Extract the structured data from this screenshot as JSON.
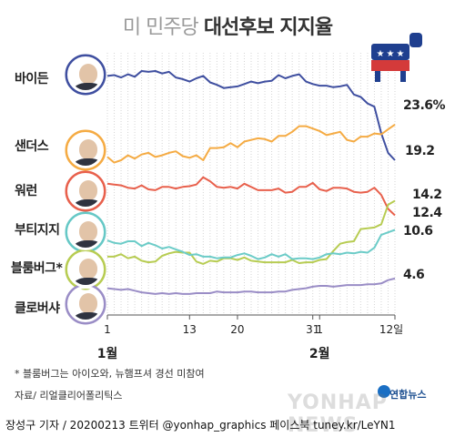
{
  "title": {
    "light": "미 민주당",
    "bold": "대선후보 지지율"
  },
  "candidates": [
    {
      "name": "바이든",
      "color": "#3f4fa0",
      "final_label": "19.2",
      "avatar_color": "#3f4fa0"
    },
    {
      "name": "샌더스",
      "color": "#f5ab43",
      "final_label": "23.6%",
      "avatar_color": "#f5ab43"
    },
    {
      "name": "워런",
      "color": "#e8604c",
      "final_label": "12.4",
      "avatar_color": "#e8604c"
    },
    {
      "name": "부티지지",
      "color": "#b7cc52",
      "final_label": "14.2",
      "avatar_color": "#66c8c6"
    },
    {
      "name": "블룸버그*",
      "color": "#6cccc8",
      "final_label": "10.6",
      "avatar_color": "#b7cc52"
    },
    {
      "name": "클로버샤",
      "color": "#9a8dc6",
      "final_label": "4.6",
      "avatar_color": "#9a8dc6"
    }
  ],
  "x_ticks": [
    "1",
    "13",
    "20",
    "31",
    "1",
    "12일"
  ],
  "months": [
    "1월",
    "2월"
  ],
  "footnote": "* 블룸버그는 아이오와, 뉴햄프셔 경선 미참여",
  "source": "자료/ 리얼클리어폴리틱스",
  "footer": "장성구 기자 / 20200213  트위터 @yonhap_graphics  페이스북 tuney.kr/LeYN1",
  "logo": "연합뉴스",
  "watermark": "YONHAP NEWS",
  "chart_data": {
    "type": "line",
    "title": "미 민주당 대선후보 지지율",
    "x_label": "",
    "y_label": "",
    "grid": true,
    "x": [
      1,
      2,
      3,
      4,
      5,
      6,
      7,
      8,
      9,
      10,
      11,
      12,
      13,
      14,
      15,
      16,
      17,
      18,
      19,
      20,
      21,
      22,
      23,
      24,
      25,
      26,
      27,
      28,
      29,
      30,
      31,
      32,
      33,
      34,
      35,
      36,
      37,
      38,
      39,
      40,
      41,
      42,
      43
    ],
    "series": [
      {
        "name": "바이든",
        "values": [
          29.6,
          29.7,
          29.4,
          29.8,
          29.5,
          30.2,
          30.1,
          30.2,
          29.9,
          30.1,
          29.4,
          29.2,
          28.9,
          29.3,
          29.6,
          28.8,
          28.5,
          28.1,
          28.2,
          28.3,
          28.6,
          28.9,
          28.7,
          28.9,
          29.0,
          29.7,
          29.3,
          29.6,
          29.8,
          28.9,
          28.6,
          28.4,
          28.4,
          28.2,
          28.3,
          28.5,
          27.3,
          27.0,
          26.2,
          25.8,
          22.5,
          20.1,
          19.2
        ]
      },
      {
        "name": "샌더스",
        "values": [
          19.6,
          18.9,
          19.2,
          19.8,
          19.4,
          19.9,
          20.1,
          19.6,
          19.8,
          20.1,
          20.3,
          19.7,
          19.5,
          19.8,
          19.2,
          20.7,
          20.7,
          20.8,
          21.3,
          20.8,
          21.5,
          21.7,
          21.9,
          21.8,
          21.5,
          22.2,
          22.2,
          22.7,
          23.4,
          23.4,
          23.1,
          22.8,
          22.3,
          22.5,
          22.7,
          21.7,
          21.5,
          22.1,
          22.1,
          22.5,
          22.4,
          23.0,
          23.6
        ]
      },
      {
        "name": "워런",
        "values": [
          16.3,
          16.2,
          16.1,
          15.8,
          15.7,
          16.1,
          15.6,
          15.5,
          15.9,
          15.9,
          15.7,
          15.9,
          16.0,
          16.2,
          17.1,
          16.6,
          15.9,
          15.8,
          15.9,
          15.7,
          16.3,
          15.9,
          15.5,
          15.5,
          15.5,
          15.7,
          15.2,
          15.3,
          15.9,
          15.9,
          16.4,
          15.6,
          15.4,
          15.8,
          15.8,
          15.7,
          15.3,
          15.2,
          15.3,
          15.8,
          14.9,
          13.2,
          12.4
        ]
      },
      {
        "name": "부티지지",
        "values": [
          7.3,
          7.3,
          7.6,
          7.1,
          7.3,
          6.8,
          6.6,
          6.7,
          7.4,
          7.7,
          7.9,
          7.8,
          7.8,
          6.7,
          6.4,
          6.8,
          6.7,
          7.1,
          7.1,
          6.9,
          7.2,
          6.8,
          6.7,
          6.6,
          6.6,
          6.6,
          6.6,
          6.9,
          6.5,
          6.6,
          6.6,
          6.9,
          7.0,
          8.0,
          8.9,
          9.1,
          9.2,
          10.7,
          10.8,
          10.9,
          11.3,
          13.7,
          14.2
        ]
      },
      {
        "name": "블룸버그*",
        "values": [
          9.3,
          9.0,
          8.9,
          9.2,
          9.2,
          8.6,
          9.0,
          8.7,
          8.3,
          8.5,
          8.2,
          7.9,
          7.5,
          7.6,
          7.3,
          7.3,
          7.1,
          7.2,
          7.2,
          7.5,
          7.7,
          7.4,
          7.0,
          7.2,
          7.6,
          7.3,
          7.6,
          7.0,
          7.1,
          7.1,
          7.0,
          7.2,
          7.6,
          7.7,
          7.6,
          7.8,
          7.7,
          7.9,
          7.8,
          8.4,
          10.0,
          10.3,
          10.6
        ]
      },
      {
        "name": "클로버샤",
        "values": [
          3.4,
          3.3,
          3.2,
          3.3,
          3.1,
          2.9,
          2.8,
          2.7,
          2.8,
          2.7,
          2.8,
          2.7,
          2.7,
          2.8,
          2.8,
          2.8,
          3.0,
          2.9,
          2.9,
          2.9,
          3.0,
          3.0,
          2.9,
          2.9,
          2.9,
          3.0,
          3.0,
          3.2,
          3.3,
          3.4,
          3.6,
          3.7,
          3.7,
          3.6,
          3.7,
          3.8,
          3.8,
          3.8,
          3.9,
          3.9,
          4.0,
          4.4,
          4.6
        ]
      }
    ],
    "y_range": [
      1,
      32
    ],
    "x_tick_positions": [
      1,
      13,
      20,
      31,
      32,
      43
    ]
  }
}
